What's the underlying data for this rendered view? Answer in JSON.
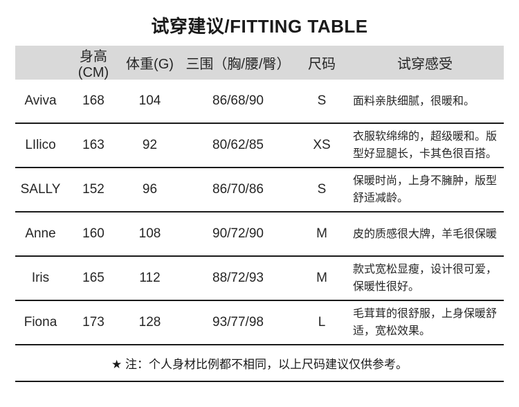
{
  "page": {
    "title": "试穿建议/FITTING TABLE",
    "note": "★ 注：个人身材比例都不相同，以上尺码建议仅供参考。",
    "colors": {
      "header_bg": "#d9d9d9",
      "text": "#262626",
      "divider": "#1a1a1a",
      "background": "#ffffff"
    }
  },
  "table": {
    "columns": [
      {
        "key": "name",
        "label": ""
      },
      {
        "key": "height",
        "label": "身高(CM)"
      },
      {
        "key": "weight",
        "label": "体重(G)"
      },
      {
        "key": "measurements",
        "label": "三围（胸/腰/臀）"
      },
      {
        "key": "size",
        "label": "尺码"
      },
      {
        "key": "feedback",
        "label": "试穿感受"
      }
    ],
    "rows": [
      {
        "name": "Aviva",
        "height": "168",
        "weight": "104",
        "measurements": "86/68/90",
        "size": "S",
        "feedback": "面料亲肤细腻，很暖和。"
      },
      {
        "name": "LIlico",
        "height": "163",
        "weight": "92",
        "measurements": "80/62/85",
        "size": "XS",
        "feedback": "衣服软绵绵的，超级暖和。版型好显腿长，卡其色很百搭。"
      },
      {
        "name": "SALLY",
        "height": "152",
        "weight": "96",
        "measurements": "86/70/86",
        "size": "S",
        "feedback": "保暖时尚，上身不臃肿，版型舒适减龄。"
      },
      {
        "name": "Anne",
        "height": "160",
        "weight": "108",
        "measurements": "90/72/90",
        "size": "M",
        "feedback": "皮的质感很大牌，羊毛很保暖"
      },
      {
        "name": "Iris",
        "height": "165",
        "weight": "112",
        "measurements": "88/72/93",
        "size": "M",
        "feedback": "款式宽松显瘦，设计很可爱，保暖性很好。"
      },
      {
        "name": "Fiona",
        "height": "173",
        "weight": "128",
        "measurements": "93/77/98",
        "size": "L",
        "feedback": "毛茸茸的很舒服，上身保暖舒适，宽松效果。"
      }
    ]
  }
}
